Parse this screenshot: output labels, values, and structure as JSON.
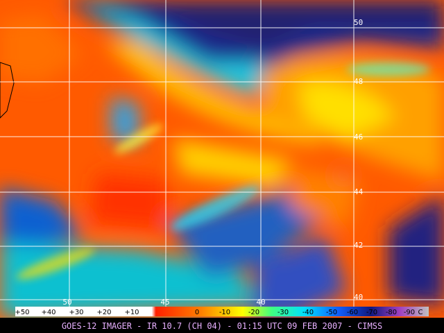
{
  "map": {
    "latitude_labels": [
      "50",
      "48",
      "46",
      "44",
      "42",
      "40"
    ],
    "longitude_labels": [
      "50",
      "45",
      "40"
    ]
  },
  "colorbar": {
    "labels": [
      "+50",
      "+40",
      "+30",
      "+20",
      "+10",
      "0",
      "-10",
      "-20",
      "-30",
      "-40",
      "-50",
      "-60",
      "-70",
      "-80",
      "-90",
      "C"
    ]
  },
  "caption": "GOES-12 IMAGER - IR 10.7 (CH 04) - 01:15 UTC 09 FEB 2007 - CIMSS"
}
